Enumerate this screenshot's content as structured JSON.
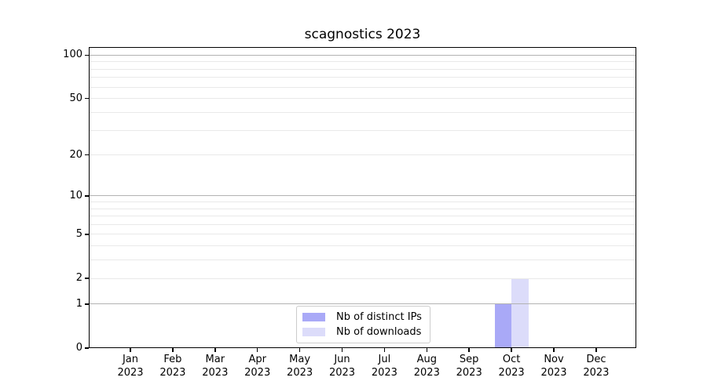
{
  "chart_data": {
    "type": "bar",
    "title": "scagnostics 2023",
    "categories": [
      {
        "month": "Jan",
        "year": "2023"
      },
      {
        "month": "Feb",
        "year": "2023"
      },
      {
        "month": "Mar",
        "year": "2023"
      },
      {
        "month": "Apr",
        "year": "2023"
      },
      {
        "month": "May",
        "year": "2023"
      },
      {
        "month": "Jun",
        "year": "2023"
      },
      {
        "month": "Jul",
        "year": "2023"
      },
      {
        "month": "Aug",
        "year": "2023"
      },
      {
        "month": "Sep",
        "year": "2023"
      },
      {
        "month": "Oct",
        "year": "2023"
      },
      {
        "month": "Nov",
        "year": "2023"
      },
      {
        "month": "Dec",
        "year": "2023"
      }
    ],
    "series": [
      {
        "name": "Nb of distinct IPs",
        "color": "#a9a9f7",
        "values": [
          0,
          0,
          0,
          0,
          0,
          0,
          0,
          0,
          0,
          1,
          0,
          0
        ]
      },
      {
        "name": "Nb of downloads",
        "color": "#dcdcfa",
        "values": [
          0,
          0,
          0,
          0,
          0,
          0,
          0,
          0,
          0,
          2,
          0,
          0
        ]
      }
    ],
    "y_axis": {
      "scale": "log1p",
      "ticks": [
        0,
        1,
        2,
        5,
        10,
        20,
        50,
        100
      ],
      "major_gridlines": [
        1,
        10,
        100
      ],
      "minor_gridlines": [
        2,
        3,
        4,
        5,
        6,
        7,
        8,
        9,
        20,
        30,
        40,
        50,
        60,
        70,
        80,
        90
      ],
      "ylim": [
        0,
        113
      ]
    },
    "legend": {
      "position": "lower center"
    },
    "colors": {
      "axis": "#000000",
      "major_grid": "#b2b2b2",
      "minor_grid": "#e9e9e9",
      "background": "#ffffff"
    }
  }
}
